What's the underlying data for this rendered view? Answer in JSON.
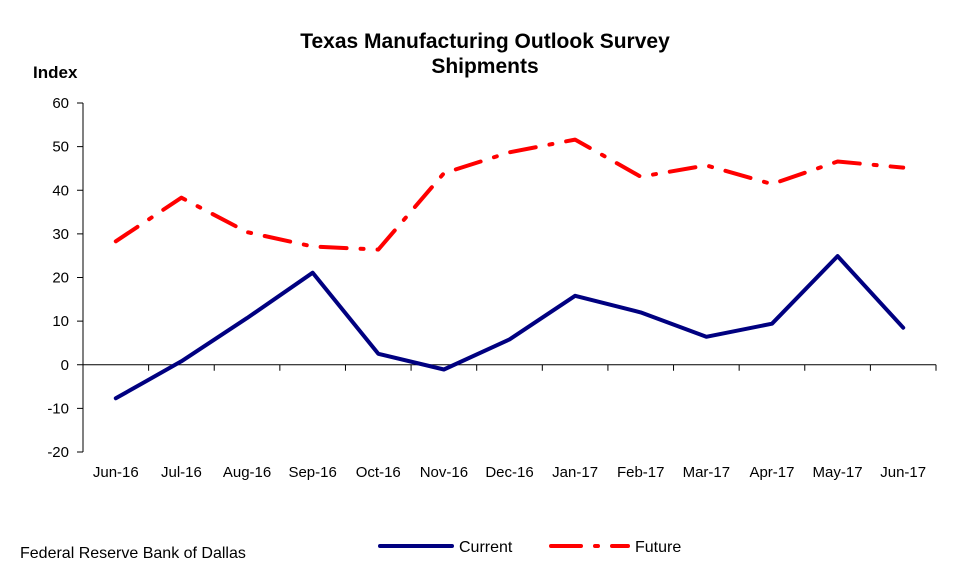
{
  "chart_data": {
    "type": "line",
    "title": "Texas Manufacturing Outlook Survey",
    "subtitle": "Shipments",
    "ylabel": "Index",
    "xlabel": "",
    "ylim": [
      -20,
      60
    ],
    "yticks": [
      -20,
      -10,
      0,
      10,
      20,
      30,
      40,
      50,
      60
    ],
    "categories": [
      "Jun-16",
      "Jul-16",
      "Aug-16",
      "Sep-16",
      "Oct-16",
      "Nov-16",
      "Dec-16",
      "Jan-17",
      "Feb-17",
      "Mar-17",
      "Apr-17",
      "May-17",
      "Jun-17"
    ],
    "series": [
      {
        "name": "Current",
        "color": "#000080",
        "style": "solid",
        "values": [
          -7.7,
          0.8,
          10.7,
          21.1,
          2.5,
          -1.1,
          5.8,
          15.8,
          12.0,
          6.4,
          9.4,
          24.9,
          8.5
        ]
      },
      {
        "name": "Future",
        "color": "#ff0000",
        "style": "dash-dot",
        "values": [
          28.3,
          38.3,
          30.4,
          27.1,
          26.4,
          43.9,
          48.7,
          51.6,
          43.1,
          45.7,
          41.4,
          46.6,
          45.2
        ]
      }
    ],
    "grid": false,
    "legend_position": "bottom-center",
    "source": "Federal Reserve Bank of Dallas"
  }
}
